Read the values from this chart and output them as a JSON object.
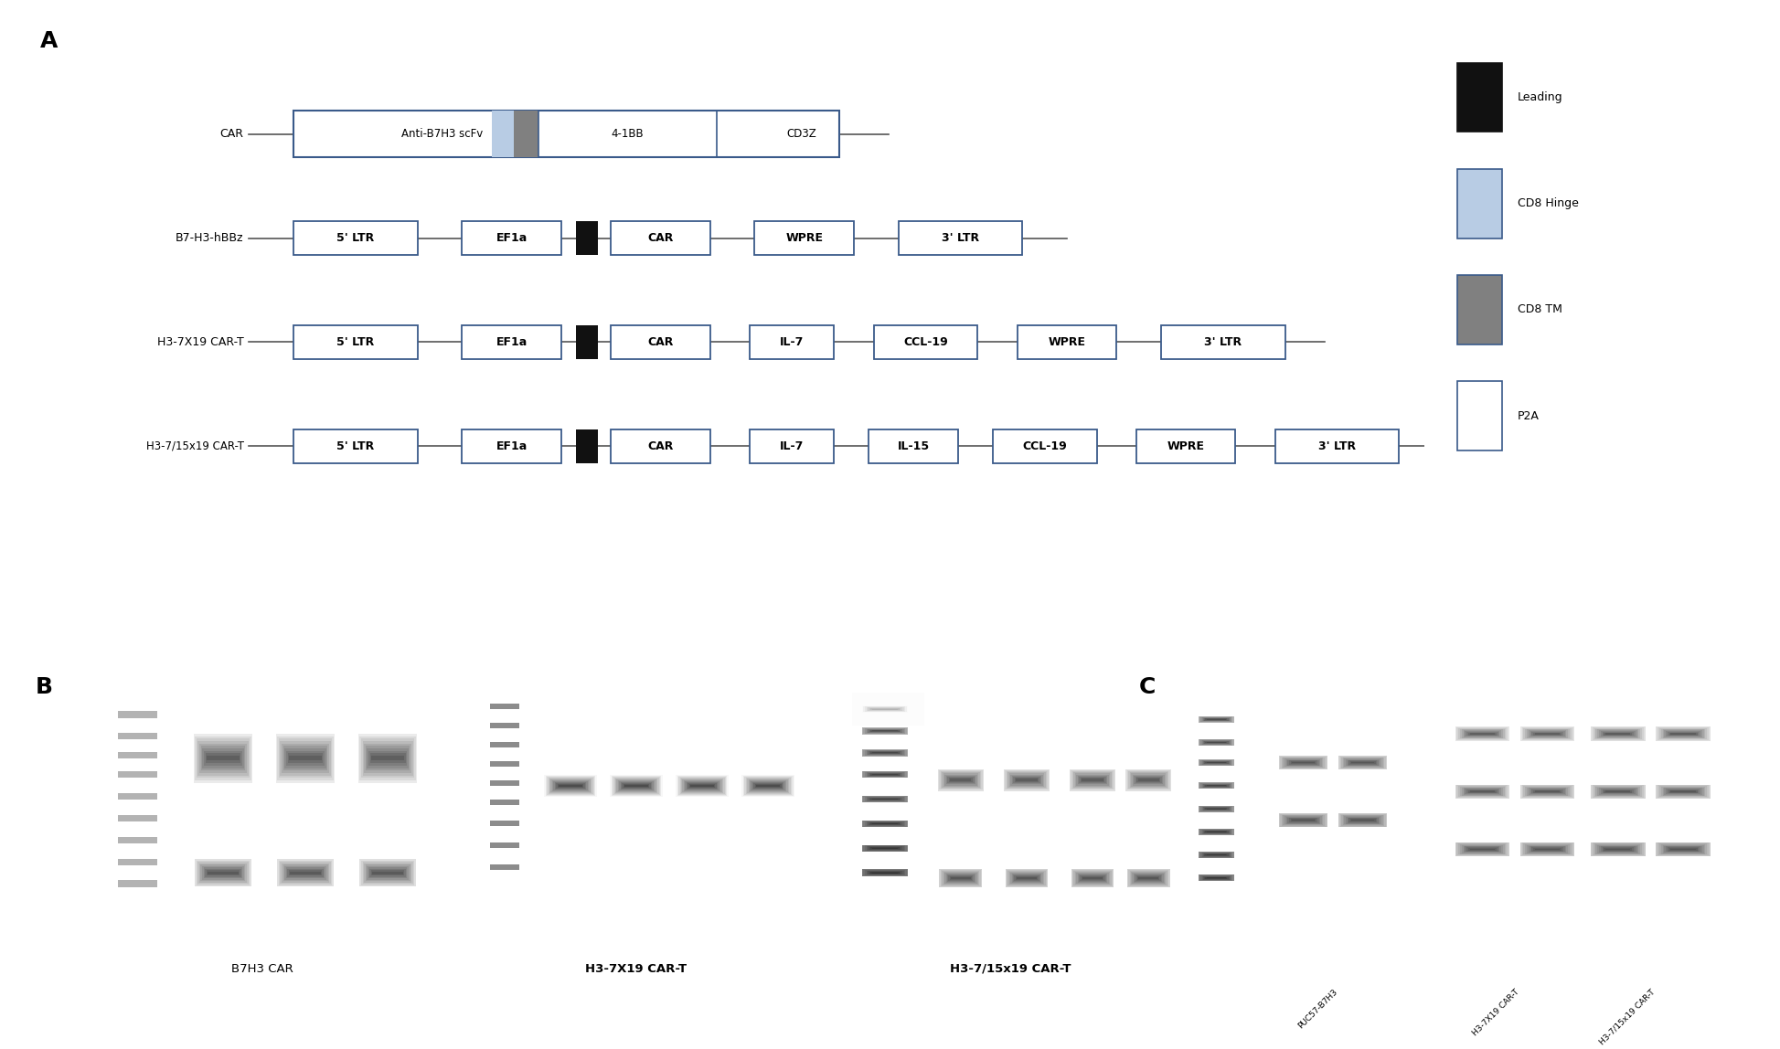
{
  "fig_width": 19.47,
  "fig_height": 11.48,
  "bg_color": "#ffffff",
  "box_edge_color": "#3a5a8a",
  "box_text_color": "#000000",
  "line_color": "#555555",
  "gel1_bg": "#3a3a3a",
  "gel2_bg": "#3d3d3d",
  "gel3_bg": "#3a3a3a",
  "gelC_bg": "#111111",
  "panel_A_label": "A",
  "panel_B_label": "B",
  "panel_C_label": "C"
}
